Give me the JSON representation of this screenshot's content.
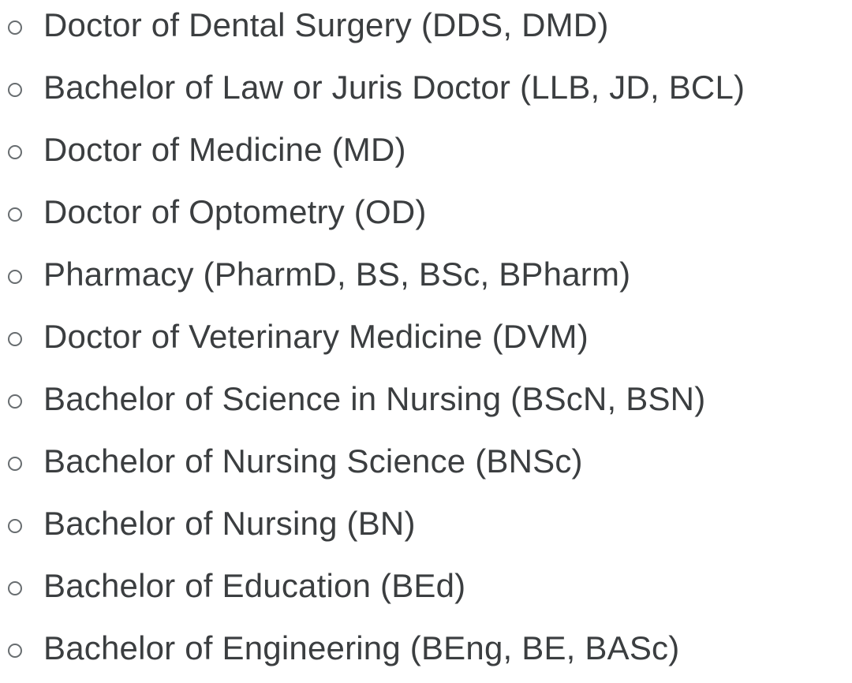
{
  "page": {
    "background_color": "#ffffff",
    "text_color": "#3b3e40",
    "bullet_color": "#686d70",
    "bullet_style": "hollow-circle"
  },
  "list": {
    "items": [
      {
        "label": "Doctor of Dental Surgery (DDS, DMD)"
      },
      {
        "label": "Bachelor of Law or Juris Doctor (LLB, JD, BCL)"
      },
      {
        "label": "Doctor of Medicine (MD)"
      },
      {
        "label": "Doctor of Optometry (OD)"
      },
      {
        "label": "Pharmacy (PharmD, BS, BSc, BPharm)"
      },
      {
        "label": "Doctor of Veterinary Medicine (DVM)"
      },
      {
        "label": "Bachelor of Science in Nursing (BScN, BSN)"
      },
      {
        "label": "Bachelor of Nursing Science (BNSc)"
      },
      {
        "label": "Bachelor of Nursing (BN)"
      },
      {
        "label": "Bachelor of Education (BEd)"
      },
      {
        "label": "Bachelor of Engineering (BEng, BE, BASc)"
      }
    ]
  }
}
